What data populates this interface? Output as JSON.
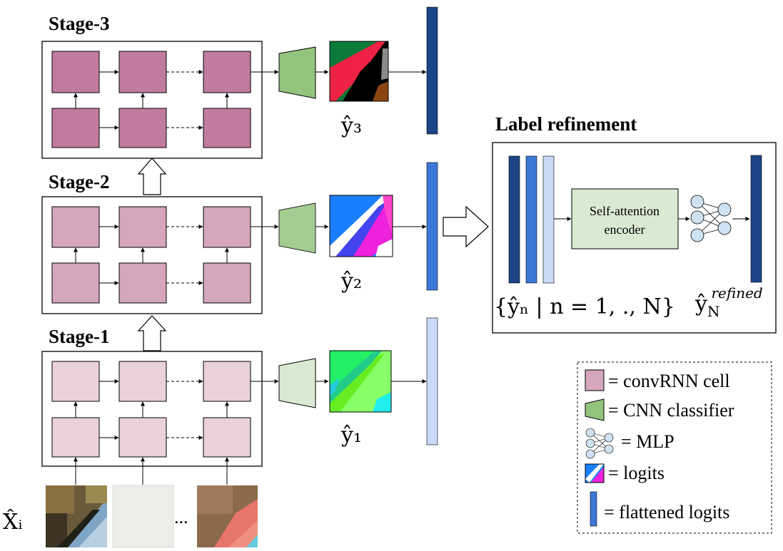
{
  "stages": [
    {
      "title": "Stage-3",
      "output_label": "ŷ₃"
    },
    {
      "title": "Stage-2",
      "output_label": "ŷ₂"
    },
    {
      "title": "Stage-1",
      "output_label": "ŷ₁"
    }
  ],
  "input_label": "X̂ᵢ",
  "input_ellipsis": "...",
  "refinement": {
    "title": "Label refinement",
    "encoder_line1": "Self-attention",
    "encoder_line2": "encoder",
    "set_label": "{ŷₙ | n = 1, ., N}",
    "refined_label": "ŷ",
    "refined_sub": "N",
    "refined_sup": "refined"
  },
  "legend": {
    "convrnn": "= convRNN cell",
    "cnn": "= CNN classifier",
    "mlp": "= MLP",
    "logits": "= logits",
    "flattened": "= flattened logits"
  },
  "colors": {
    "stage3_cell": "#c27ba0",
    "stage2_cell": "#d5a6bd",
    "stage1_cell": "#ead1dc",
    "stage3_cnn": "#93c47d",
    "stage2_cnn": "#b6d7a8",
    "stage1_cnn": "#d9ead3",
    "vec_dark": "#1c4587",
    "vec_mid": "#3c78d8",
    "vec_light": "#c9daf8",
    "encoder_fill": "#d9ead3",
    "mlp_node": "#cfe2f3"
  }
}
